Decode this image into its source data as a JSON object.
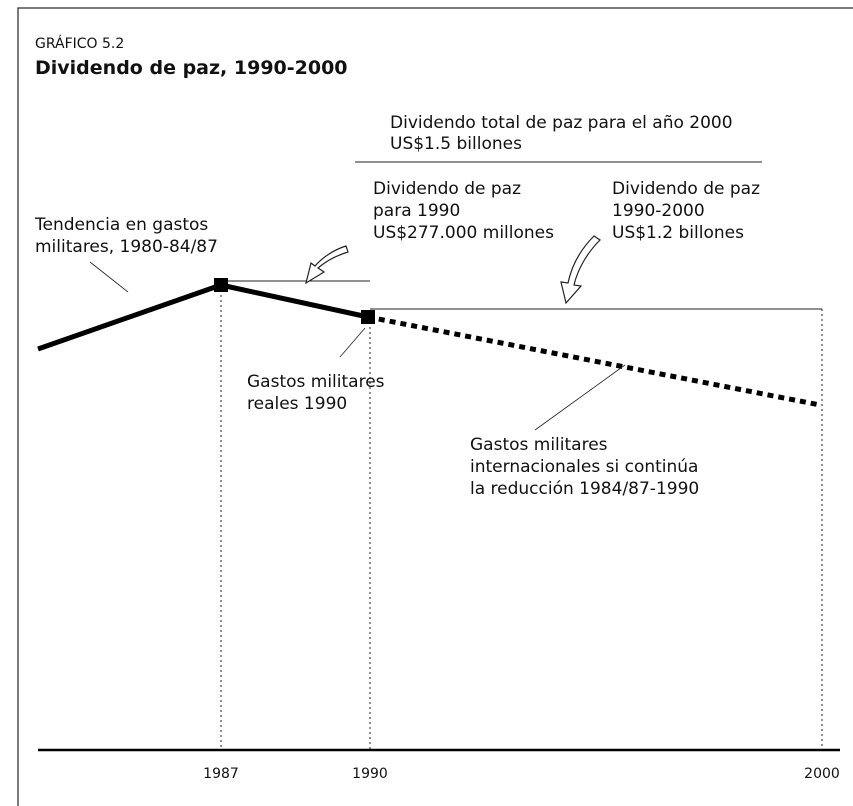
{
  "header": {
    "label": "GRÁFICO 5.2",
    "title": "Dividendo de paz, 1990-2000"
  },
  "annotations": {
    "total": [
      "Dividendo total de paz para el año 2000",
      "US$1.5 billones"
    ],
    "dividend_1990": [
      "Dividendo de paz",
      "para 1990",
      "US$277.000 millones"
    ],
    "dividend_1990_2000": [
      "Dividendo de paz",
      "1990-2000",
      "US$1.2 billones"
    ],
    "trend": [
      "Tendencia en gastos",
      "militares, 1980-84/87"
    ],
    "actual": [
      "Gastos militares",
      "reales 1990"
    ],
    "projection": [
      "Gastos militares",
      "internacionales si continúa",
      "la reducción 1984/87-1990"
    ]
  },
  "x_labels": [
    "1987",
    "1990",
    "2000"
  ]
}
